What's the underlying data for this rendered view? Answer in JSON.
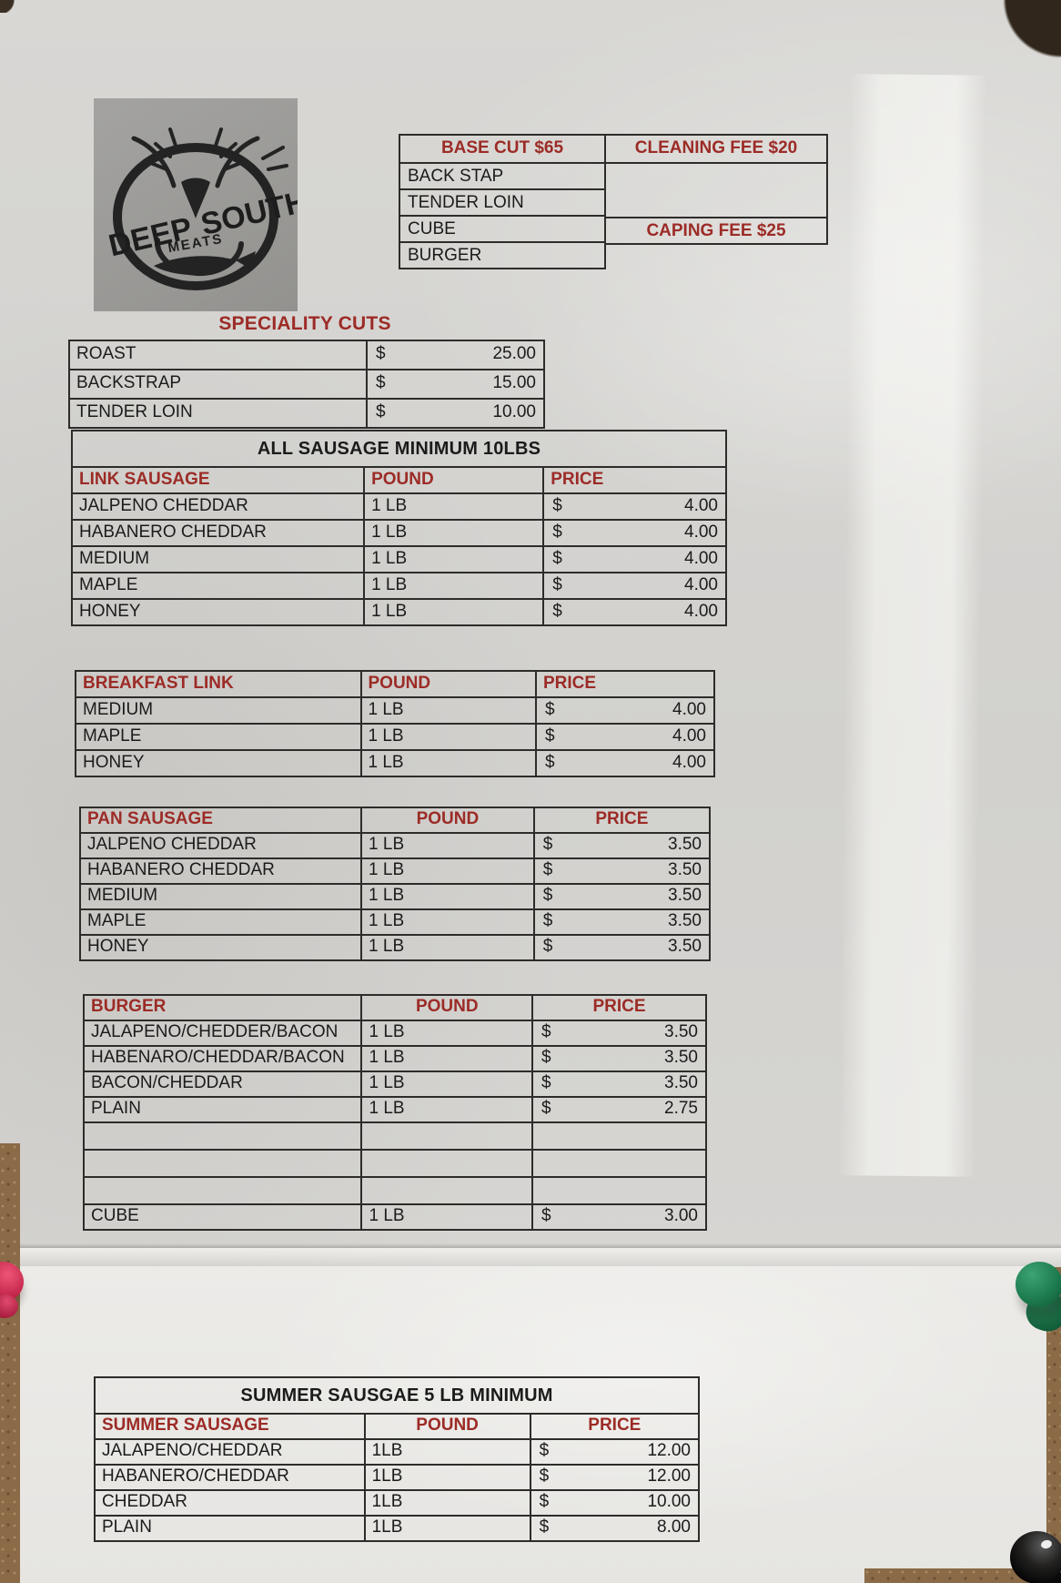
{
  "colors": {
    "header_red": "#9c2b26",
    "text_black": "#1b1b1b",
    "table_border": "#2e2c2a",
    "paper_top": "#d5d4d1",
    "paper_bottom": "#eae9e6",
    "corkboard": "#8a6a47",
    "logo_panel_gray": "#9a9997",
    "pin_pink": "#c02347",
    "pin_green": "#1d7a4e",
    "pin_black": "#0a0a0a"
  },
  "logo": {
    "word_left": "DEEP",
    "word_right": "SOUTH",
    "word_center": "MEATS"
  },
  "base_cut": {
    "header": "BASE CUT $65",
    "rows": [
      "BACK STAP",
      "TENDER LOIN",
      "CUBE",
      "BURGER"
    ],
    "cleaning_fee": "CLEANING FEE $20",
    "caping_fee": "CAPING FEE $25"
  },
  "speciality": {
    "title": "SPECIALITY CUTS",
    "currency": "$",
    "rows": [
      [
        "ROAST",
        "25.00"
      ],
      [
        "BACKSTRAP",
        "15.00"
      ],
      [
        "TENDER LOIN",
        "10.00"
      ]
    ]
  },
  "link_sausage": {
    "banner": "ALL SAUSAGE MINIMUM 10LBS",
    "header": [
      "LINK SAUSAGE",
      "POUND",
      "PRICE"
    ],
    "currency": "$",
    "rows": [
      [
        "JALPENO CHEDDAR",
        "1 LB",
        "4.00"
      ],
      [
        "HABANERO CHEDDAR",
        "1 LB",
        "4.00"
      ],
      [
        "MEDIUM",
        "1 LB",
        "4.00"
      ],
      [
        "MAPLE",
        "1 LB",
        "4.00"
      ],
      [
        "HONEY",
        "1 LB",
        "4.00"
      ]
    ]
  },
  "breakfast_link": {
    "header": [
      "BREAKFAST LINK",
      "POUND",
      "PRICE"
    ],
    "currency": "$",
    "rows": [
      [
        "MEDIUM",
        "1 LB",
        "4.00"
      ],
      [
        "MAPLE",
        "1 LB",
        "4.00"
      ],
      [
        "HONEY",
        "1 LB",
        "4.00"
      ]
    ]
  },
  "pan_sausage": {
    "header": [
      "PAN SAUSAGE",
      "POUND",
      "PRICE"
    ],
    "currency": "$",
    "rows": [
      [
        "JALPENO CHEDDAR",
        "1 LB",
        "3.50"
      ],
      [
        "HABANERO CHEDDAR",
        "1 LB",
        "3.50"
      ],
      [
        "MEDIUM",
        "1 LB",
        "3.50"
      ],
      [
        "MAPLE",
        "1 LB",
        "3.50"
      ],
      [
        "HONEY",
        "1 LB",
        "3.50"
      ]
    ]
  },
  "burger": {
    "header": [
      "BURGER",
      "POUND",
      "PRICE"
    ],
    "currency": "$",
    "rows": [
      [
        "JALAPENO/CHEDDER/BACON",
        "1 LB",
        "3.50"
      ],
      [
        "HABENARO/CHEDDAR/BACON",
        "1 LB",
        "3.50"
      ],
      [
        "BACON/CHEDDAR",
        "1 LB",
        "3.50"
      ],
      [
        "PLAIN",
        "1 LB",
        "2.75"
      ]
    ],
    "empty_rows": 3,
    "footer_row": [
      "CUBE",
      "1 LB",
      "3.00"
    ]
  },
  "summer": {
    "banner": "SUMMER SAUSGAE 5 LB MINIMUM",
    "header": [
      "SUMMER SAUSAGE",
      "POUND",
      "PRICE"
    ],
    "currency": "$",
    "rows": [
      [
        "JALAPENO/CHEDDAR",
        "1LB",
        "12.00"
      ],
      [
        "HABANERO/CHEDDAR",
        "1LB",
        "12.00"
      ],
      [
        "CHEDDAR",
        "1LB",
        "10.00"
      ],
      [
        "PLAIN",
        "1LB",
        "8.00"
      ]
    ]
  }
}
